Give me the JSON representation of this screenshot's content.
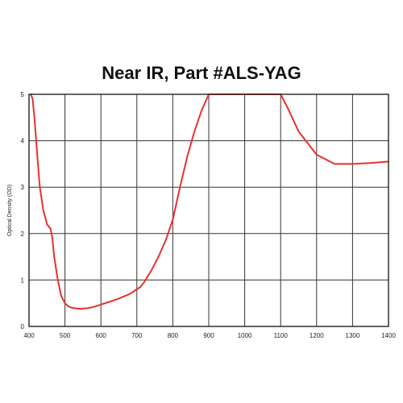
{
  "chart_data": {
    "type": "line",
    "title": "Near IR, Part #ALS-YAG",
    "xlabel": "",
    "ylabel": "Optical Density (OD)",
    "xlim": [
      400,
      1400
    ],
    "ylim": [
      0,
      5
    ],
    "xticks": [
      400,
      500,
      600,
      700,
      800,
      900,
      1000,
      1100,
      1200,
      1300,
      1400
    ],
    "yticks": [
      0,
      1,
      2,
      3,
      4,
      5
    ],
    "grid": true,
    "series": [
      {
        "color": "#e8302c",
        "x": [
          405,
          410,
          415,
          420,
          425,
          430,
          440,
          450,
          460,
          465,
          470,
          480,
          490,
          500,
          510,
          520,
          540,
          560,
          580,
          600,
          620,
          650,
          680,
          700,
          710,
          720,
          740,
          760,
          780,
          800,
          820,
          840,
          860,
          880,
          900,
          950,
          1000,
          1050,
          1100,
          1120,
          1150,
          1200,
          1250,
          1300,
          1350,
          1400
        ],
        "y": [
          5.0,
          4.9,
          4.5,
          4.0,
          3.5,
          3.0,
          2.5,
          2.2,
          2.1,
          1.9,
          1.5,
          1.0,
          0.65,
          0.5,
          0.43,
          0.4,
          0.38,
          0.39,
          0.42,
          0.47,
          0.52,
          0.6,
          0.7,
          0.8,
          0.85,
          0.95,
          1.2,
          1.5,
          1.85,
          2.3,
          3.0,
          3.65,
          4.2,
          4.65,
          5.0,
          5.0,
          5.0,
          5.0,
          5.0,
          4.7,
          4.2,
          3.7,
          3.5,
          3.5,
          3.52,
          3.55
        ]
      }
    ]
  }
}
